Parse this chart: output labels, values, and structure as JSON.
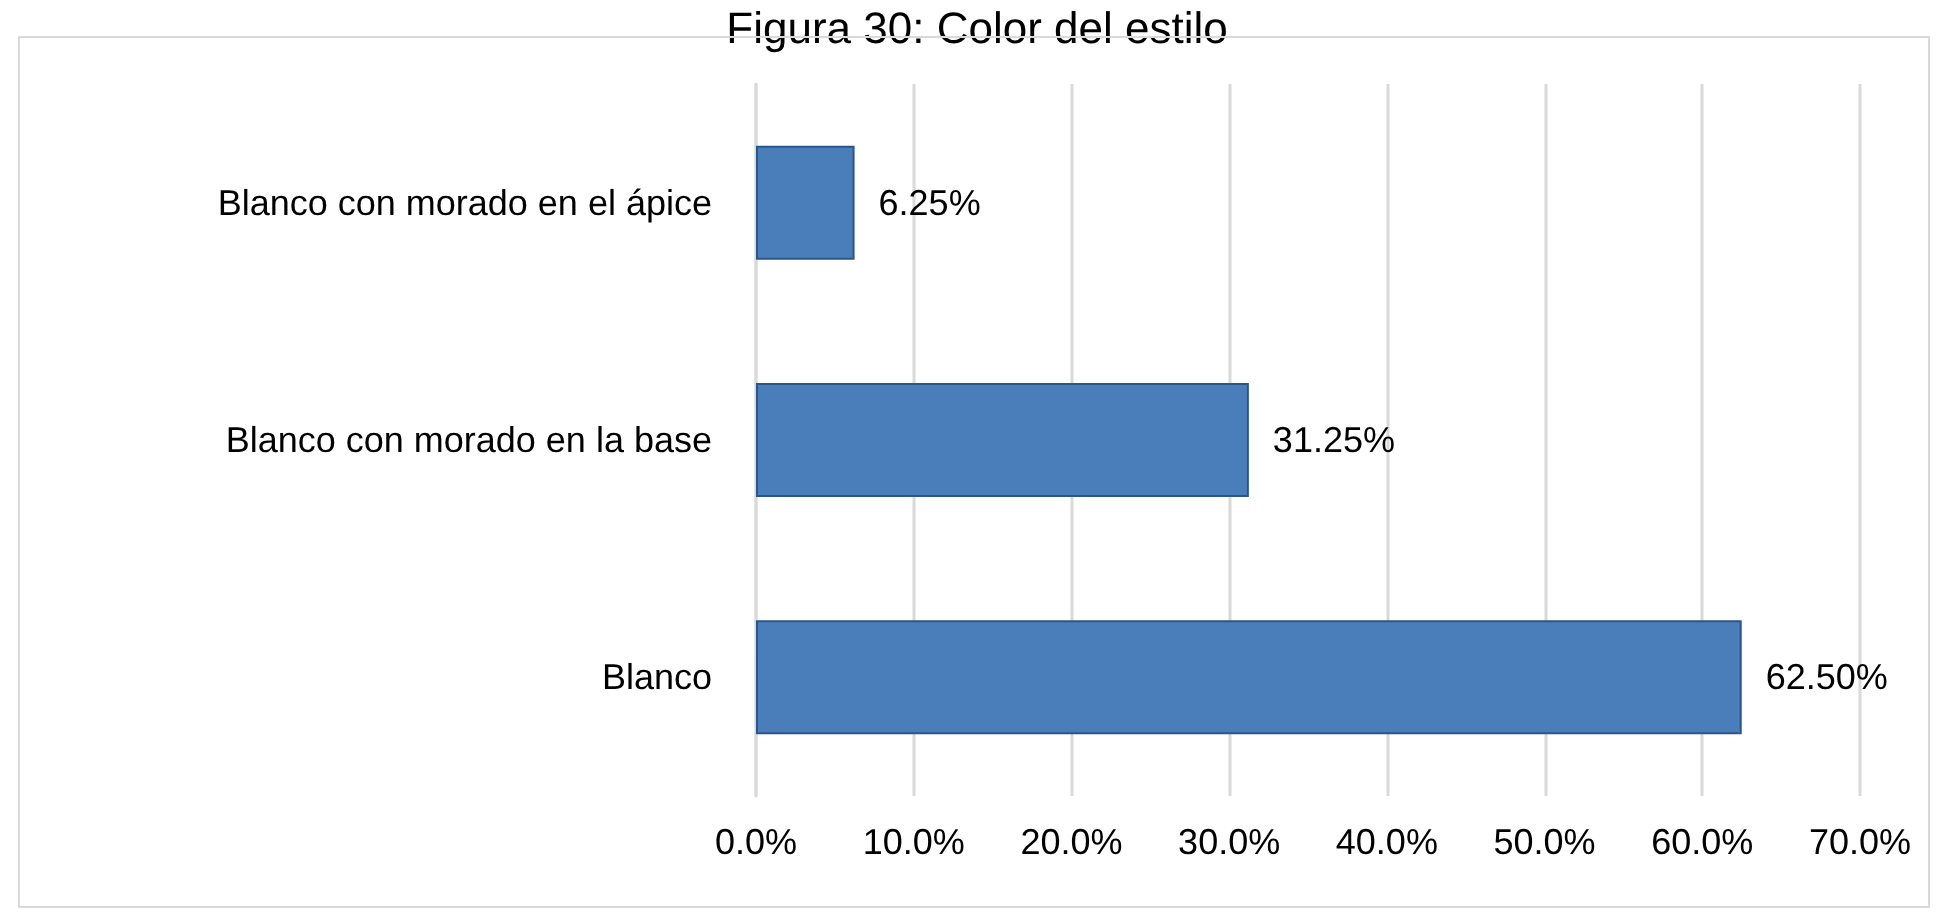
{
  "chart_data": {
    "type": "bar",
    "orientation": "horizontal",
    "title": "Figura 30: Color del estilo",
    "categories": [
      "Blanco con morado en el ápice",
      "Blanco con morado en la base",
      "Blanco"
    ],
    "values": [
      6.25,
      31.25,
      62.5
    ],
    "color": "#4a7ebb",
    "value_labels": [
      "6.25%",
      "31.25%",
      "62.50%"
    ],
    "xlim": [
      0,
      70
    ],
    "xticks": [
      {
        "value": 0,
        "label": "0.0%"
      },
      {
        "value": 10,
        "label": "10.0%"
      },
      {
        "value": 20,
        "label": "20.0%"
      },
      {
        "value": 30,
        "label": "30.0%"
      },
      {
        "value": 40,
        "label": "40.0%"
      },
      {
        "value": 50,
        "label": "50.0%"
      },
      {
        "value": 60,
        "label": "60.0%"
      },
      {
        "value": 70,
        "label": "70.0%"
      }
    ],
    "grid": "x"
  }
}
